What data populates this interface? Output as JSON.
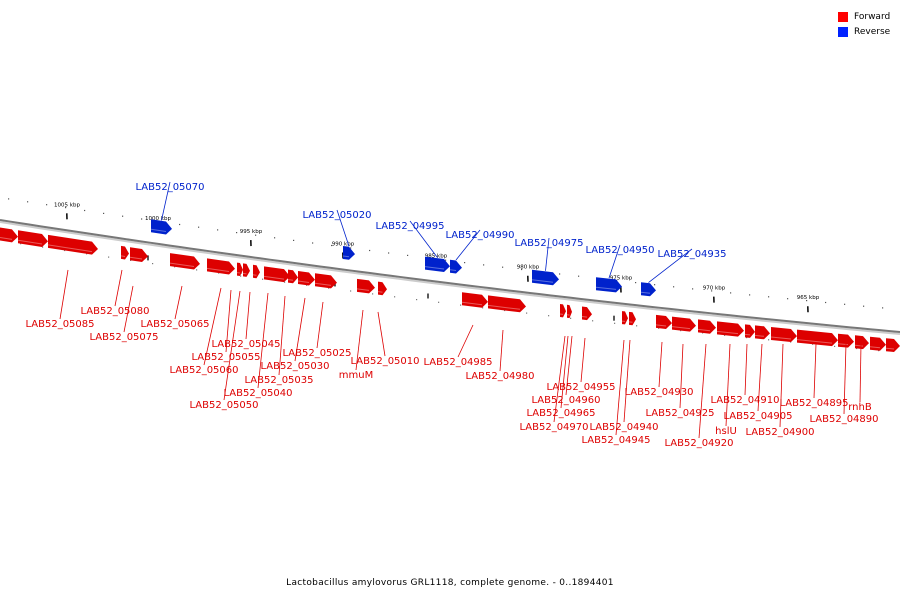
{
  "legend": {
    "forward": {
      "label": "Forward",
      "color": "#ff0000"
    },
    "reverse": {
      "label": "Reverse",
      "color": "#0022ff"
    }
  },
  "caption": "Lactobacillus amylovorus GRL1118, complete genome. - 0..1894401",
  "colors": {
    "forward": "#dd0000",
    "reverse": "#0022cc",
    "backbone": "#777777"
  },
  "ticks": [
    "1005 kbp",
    "1000 kbp",
    "995 kbp",
    "990 kbp",
    "985 kbp",
    "980 kbp",
    "975 kbp",
    "970 kbp",
    "965 kbp"
  ],
  "reverse_genes": [
    "LAB52_05070",
    "LAB52_05020",
    "LAB52_04995",
    "LAB52_04990",
    "LAB52_04975",
    "LAB52_04950",
    "LAB52_04935"
  ],
  "forward_genes": [
    "LAB52_05085",
    "LAB52_05080",
    "LAB52_05075",
    "LAB52_05065",
    "LAB52_05060",
    "LAB52_05055",
    "LAB52_05050",
    "LAB52_05045",
    "LAB52_05040",
    "LAB52_05035",
    "LAB52_05030",
    "LAB52_05025",
    "mmuM",
    "LAB52_05010",
    "LAB52_04985",
    "LAB52_04980",
    "LAB52_04970",
    "LAB52_04965",
    "LAB52_04960",
    "LAB52_04955",
    "LAB52_04945",
    "LAB52_04940",
    "LAB52_04930",
    "LAB52_04925",
    "LAB52_04920",
    "hslU",
    "LAB52_04910",
    "LAB52_04905",
    "LAB52_04900",
    "LAB52_04895",
    "LAB52_04890",
    "rnhB"
  ]
}
